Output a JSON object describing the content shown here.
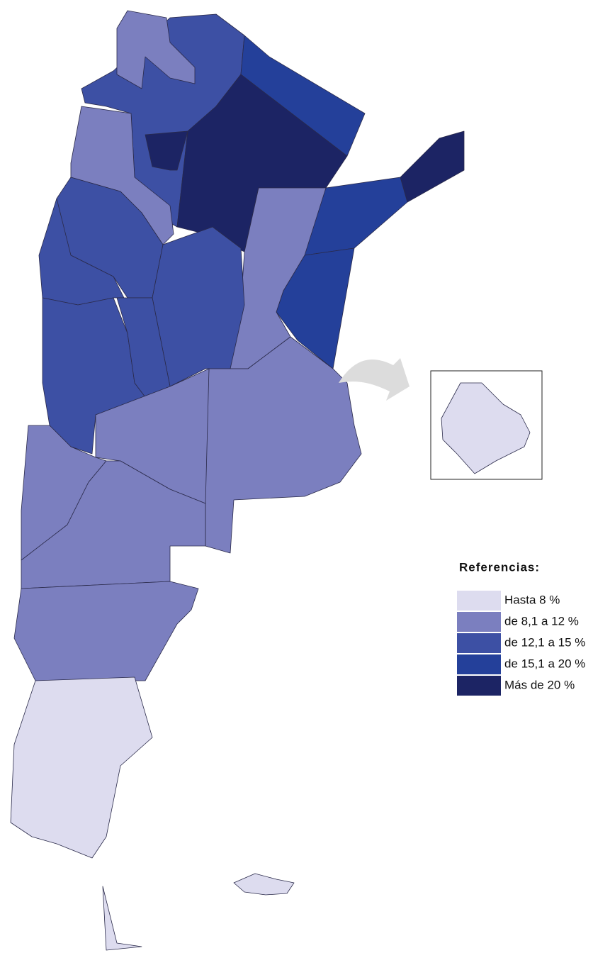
{
  "legend": {
    "title": "Referencias:",
    "items": [
      {
        "label": "Hasta 8 %",
        "color": "#dddcef"
      },
      {
        "label": "de 8,1 a 12 %",
        "color": "#7b7fbf"
      },
      {
        "label": "de 12,1 a 15 %",
        "color": "#3d50a4"
      },
      {
        "label": "de 15,1 a 20 %",
        "color": "#24409a"
      },
      {
        "label": "Más de 20 %",
        "color": "#1c2464"
      }
    ]
  }
}
